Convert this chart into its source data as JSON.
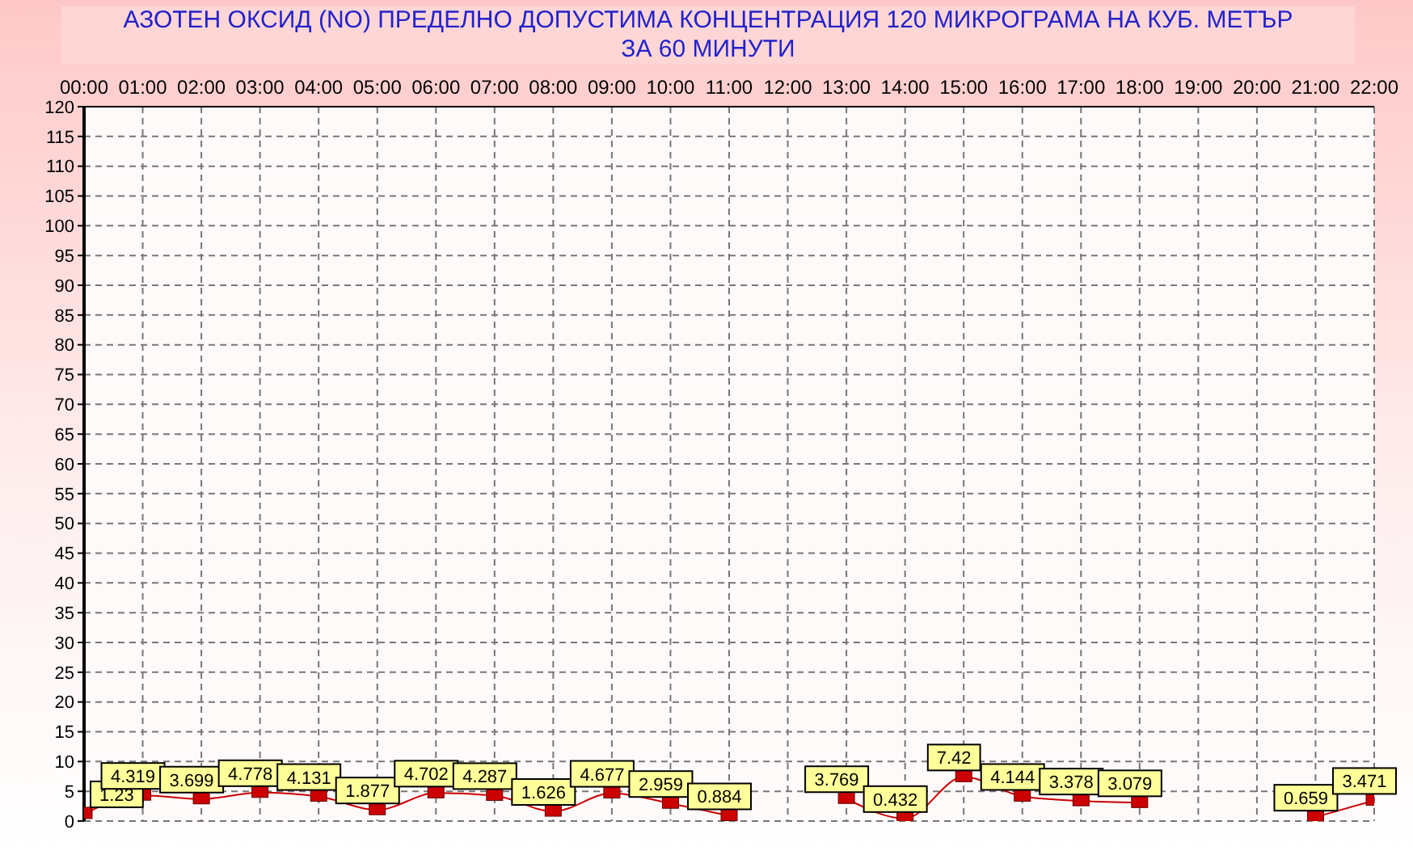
{
  "chart_data": {
    "type": "line",
    "title": "АЗОТЕН ОКСИД   (NO)     ПРЕДЕЛНО ДОПУСТИМА КОНЦЕНТРАЦИЯ 120 МИКРОГРАМА  НА КУБ. МЕТЪР",
    "subtitle": "ЗА 60 МИНУТИ",
    "x": [
      0,
      1,
      2,
      3,
      4,
      5,
      6,
      7,
      8,
      9,
      10,
      11,
      12,
      13,
      14,
      15,
      16,
      17,
      18,
      19,
      20,
      21,
      22
    ],
    "xlim": [
      0,
      22
    ],
    "xticks": [
      {
        "value": 0,
        "label": "00:00"
      },
      {
        "value": 1,
        "label": "01:00"
      },
      {
        "value": 2,
        "label": "02:00"
      },
      {
        "value": 3,
        "label": "03:00"
      },
      {
        "value": 4,
        "label": "04:00"
      },
      {
        "value": 5,
        "label": "05:00"
      },
      {
        "value": 6,
        "label": "06:00"
      },
      {
        "value": 7,
        "label": "07:00"
      },
      {
        "value": 8,
        "label": "08:00"
      },
      {
        "value": 9,
        "label": "09:00"
      },
      {
        "value": 10,
        "label": "10:00"
      },
      {
        "value": 11,
        "label": "11:00"
      },
      {
        "value": 12,
        "label": "12:00"
      },
      {
        "value": 13,
        "label": "13:00"
      },
      {
        "value": 14,
        "label": "14:00"
      },
      {
        "value": 15,
        "label": "15:00"
      },
      {
        "value": 16,
        "label": "16:00"
      },
      {
        "value": 17,
        "label": "17:00"
      },
      {
        "value": 18,
        "label": "18:00"
      },
      {
        "value": 19,
        "label": "19:00"
      },
      {
        "value": 20,
        "label": "20:00"
      },
      {
        "value": 21,
        "label": "21:00"
      },
      {
        "value": 22,
        "label": "22:00"
      }
    ],
    "values": [
      1.23,
      4.319,
      3.699,
      4.778,
      4.131,
      1.877,
      4.702,
      4.287,
      1.626,
      4.677,
      2.959,
      0.884,
      null,
      3.769,
      0.432,
      7.42,
      4.144,
      3.378,
      3.079,
      null,
      null,
      0.659,
      3.471
    ],
    "color": "#cc0000",
    "ylim": [
      0,
      120
    ],
    "yticks": [
      0,
      5,
      10,
      15,
      20,
      25,
      30,
      35,
      40,
      45,
      50,
      55,
      60,
      65,
      70,
      75,
      80,
      85,
      90,
      95,
      100,
      105,
      110,
      115,
      120
    ],
    "grid": true,
    "marker": "square",
    "line_style": "solid",
    "data_labels": true
  }
}
